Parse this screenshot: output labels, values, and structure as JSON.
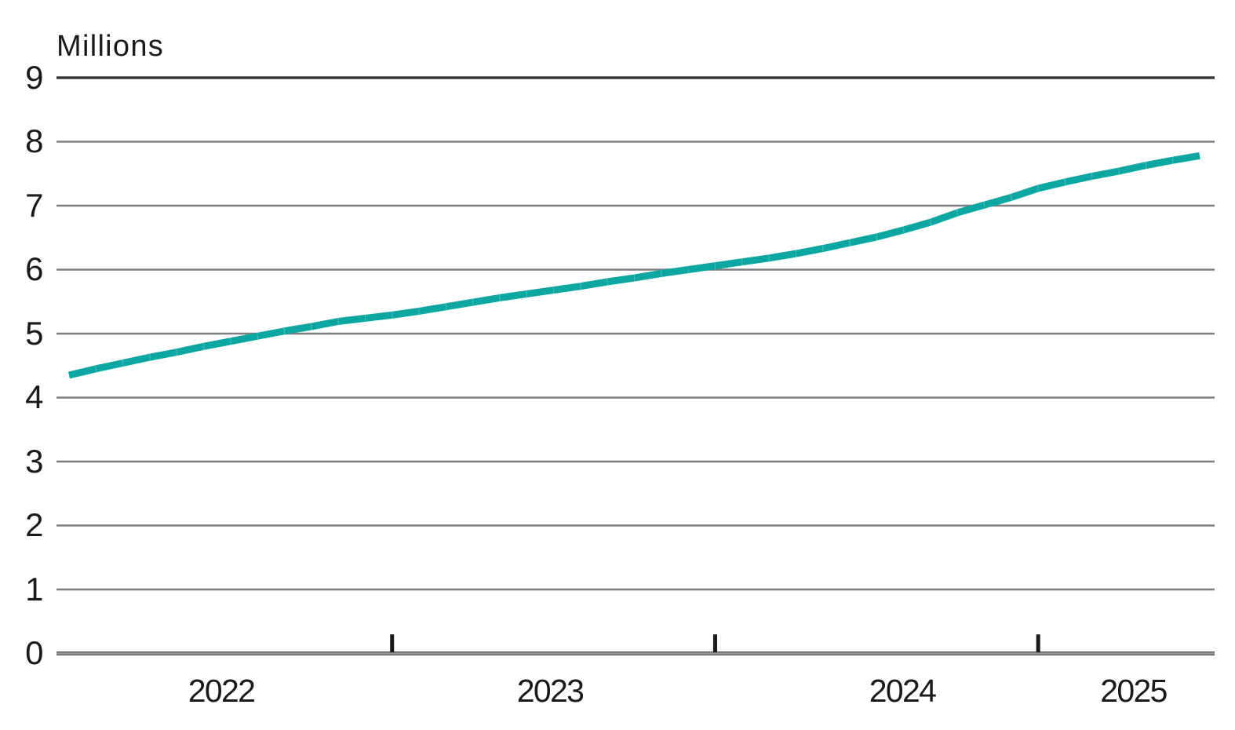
{
  "chart_data": {
    "type": "line",
    "title": "",
    "unit_label": "Millions",
    "ylabel": "Millions",
    "xlabel": "",
    "ylim": [
      0,
      9
    ],
    "yticks": [
      0,
      1,
      2,
      3,
      4,
      5,
      6,
      7,
      8,
      9
    ],
    "grid": "horizontal",
    "legend": "none",
    "x_year_labels": [
      "2022",
      "2023",
      "2024",
      "2025"
    ],
    "x_axis_tick_marks_at": [
      "Jan 2023",
      "Jan 2024",
      "Jan 2025"
    ],
    "x": [
      "Jan 2022",
      "Feb 2022",
      "Mar 2022",
      "Apr 2022",
      "May 2022",
      "Jun 2022",
      "Jul 2022",
      "Aug 2022",
      "Sep 2022",
      "Oct 2022",
      "Nov 2022",
      "Dec 2022",
      "Jan 2023",
      "Feb 2023",
      "Mar 2023",
      "Apr 2023",
      "May 2023",
      "Jun 2023",
      "Jul 2023",
      "Aug 2023",
      "Sep 2023",
      "Oct 2023",
      "Nov 2023",
      "Dec 2023",
      "Jan 2024",
      "Feb 2024",
      "Mar 2024",
      "Apr 2024",
      "May 2024",
      "Jun 2024",
      "Jul 2024",
      "Aug 2024",
      "Sep 2024",
      "Oct 2024",
      "Nov 2024",
      "Dec 2024",
      "Jan 2025",
      "Feb 2025",
      "Mar 2025",
      "Apr 2025",
      "May 2025",
      "Jun 2025",
      "Jul 2025"
    ],
    "series": [
      {
        "name": "Millions",
        "values": [
          4.35,
          4.45,
          4.54,
          4.63,
          4.71,
          4.8,
          4.88,
          4.96,
          5.04,
          5.11,
          5.19,
          5.24,
          5.29,
          5.35,
          5.42,
          5.49,
          5.56,
          5.62,
          5.68,
          5.74,
          5.81,
          5.87,
          5.94,
          6.0,
          6.06,
          6.12,
          6.18,
          6.25,
          6.33,
          6.42,
          6.51,
          6.62,
          6.74,
          6.89,
          7.01,
          7.13,
          7.27,
          7.37,
          7.46,
          7.54,
          7.63,
          7.71,
          7.78
        ]
      }
    ],
    "colors": {
      "series": "#0ba7a0",
      "gridline": "#7d7e82",
      "top_gridline": "#38393c",
      "axis_core": "#96979a",
      "axis_edge": "#4e4f51",
      "tick_mark": "#1a1a1a",
      "text": "#1a1a1a",
      "background": "#ffffff"
    }
  }
}
